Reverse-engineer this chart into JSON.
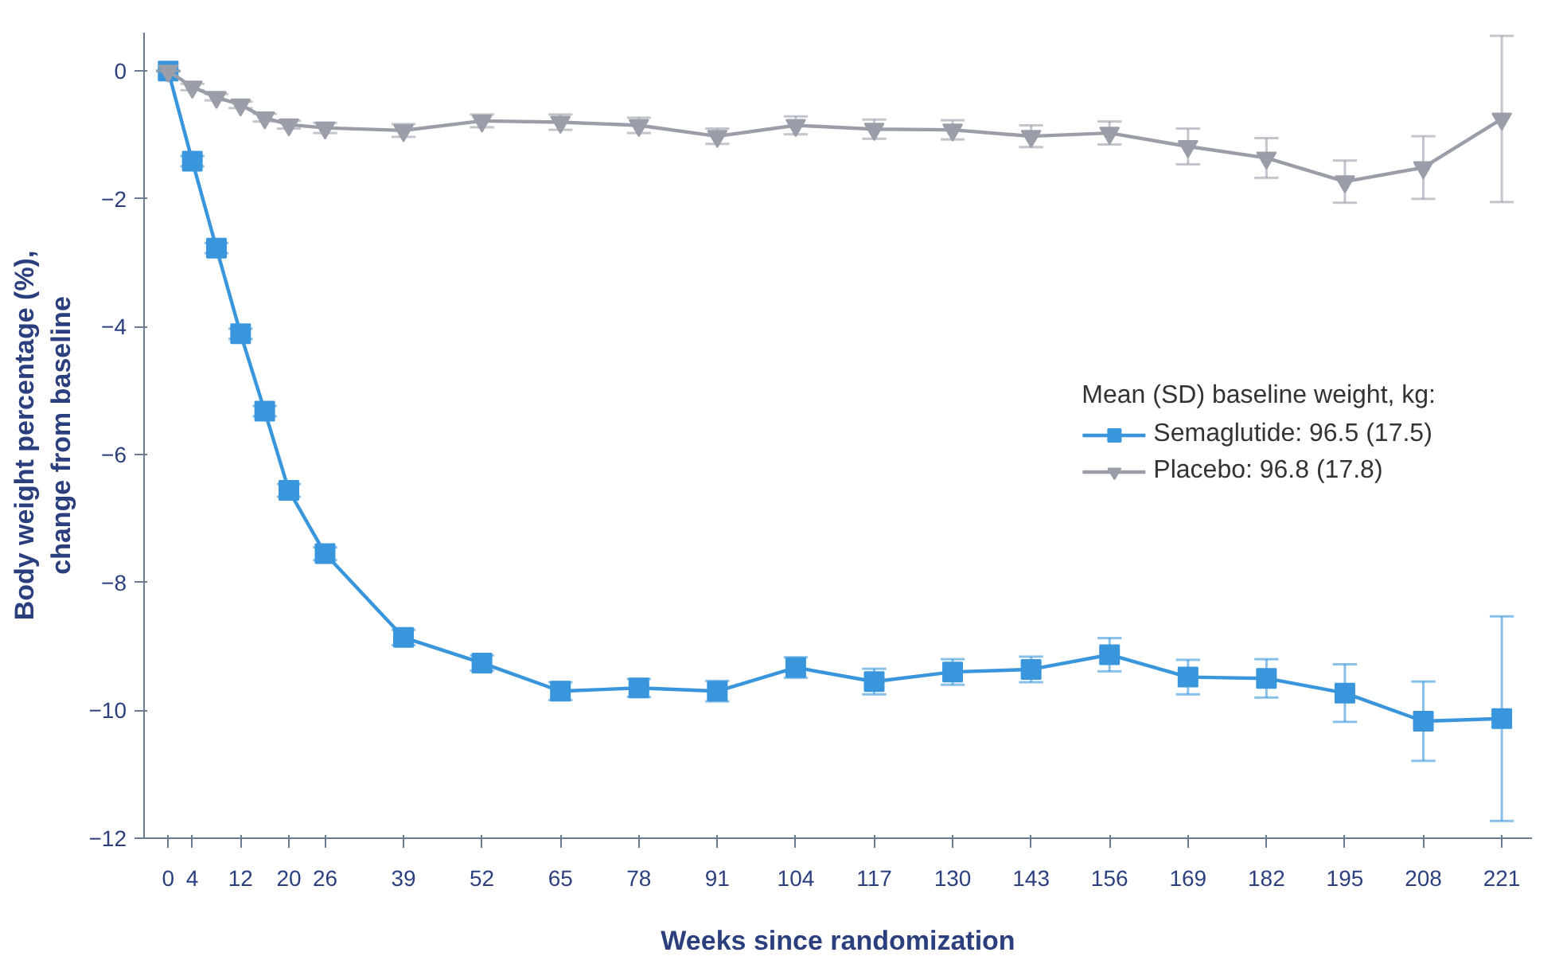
{
  "chart_data": {
    "type": "line",
    "xlabel": "Weeks since randomization",
    "ylabel": "Body weight percentage (%),\nchange from baseline",
    "legend_title": "Mean (SD) baseline weight, kg:",
    "legend": "right",
    "grid": false,
    "xlim": [
      -4,
      226
    ],
    "ylim": [
      -12,
      0.6
    ],
    "xticks": [
      0,
      4,
      12,
      20,
      26,
      39,
      52,
      65,
      78,
      91,
      104,
      117,
      130,
      143,
      156,
      169,
      182,
      195,
      208,
      221
    ],
    "yticks": [
      0,
      -2,
      -4,
      -6,
      -8,
      -10,
      -12
    ],
    "x": [
      0,
      4,
      8,
      12,
      16,
      20,
      26,
      39,
      52,
      65,
      78,
      91,
      104,
      117,
      130,
      143,
      156,
      169,
      182,
      195,
      208,
      221
    ],
    "series": [
      {
        "name": "Semaglutide: 96.5 (17.5)",
        "color": "#3a96dc",
        "marker": "square",
        "values": [
          0,
          -1.41,
          -2.77,
          -4.11,
          -5.32,
          -6.56,
          -7.55,
          -8.86,
          -9.26,
          -9.7,
          -9.65,
          -9.7,
          -9.33,
          -9.55,
          -9.4,
          -9.36,
          -9.13,
          -9.48,
          -9.5,
          -9.73,
          -10.17,
          -10.13
        ],
        "errors": [
          0,
          0.08,
          0.08,
          0.08,
          0.08,
          0.1,
          0.1,
          0.12,
          0.12,
          0.14,
          0.14,
          0.16,
          0.16,
          0.2,
          0.2,
          0.2,
          0.26,
          0.27,
          0.3,
          0.45,
          0.62,
          1.6
        ]
      },
      {
        "name": "Placebo: 96.8 (17.8)",
        "color": "#9a9ea8",
        "marker": "triangle",
        "values": [
          0,
          -0.25,
          -0.41,
          -0.53,
          -0.73,
          -0.84,
          -0.89,
          -0.93,
          -0.78,
          -0.8,
          -0.85,
          -1.02,
          -0.85,
          -0.91,
          -0.92,
          -1.02,
          -0.97,
          -1.18,
          -1.36,
          -1.73,
          -1.51,
          -0.75
        ],
        "errors": [
          0,
          0.05,
          0.05,
          0.05,
          0.06,
          0.06,
          0.08,
          0.1,
          0.1,
          0.12,
          0.12,
          0.12,
          0.14,
          0.15,
          0.15,
          0.17,
          0.18,
          0.28,
          0.31,
          0.33,
          0.49,
          1.3
        ]
      }
    ]
  }
}
